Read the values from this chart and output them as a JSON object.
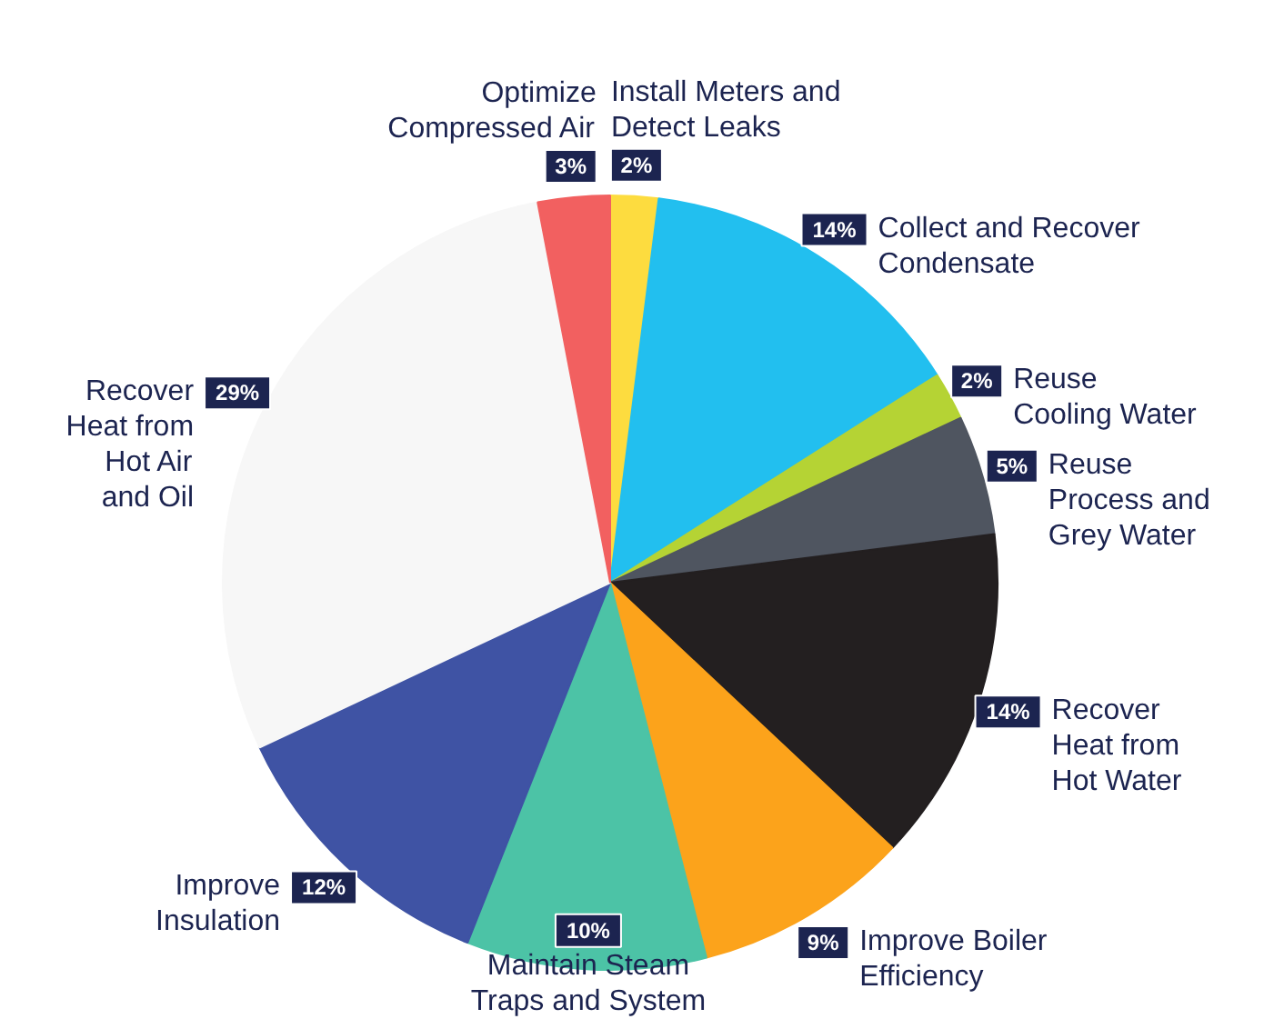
{
  "chart_data": {
    "type": "pie",
    "categories": [
      "Install Meters and\nDetect Leaks",
      "Collect and Recover\nCondensate",
      "Reuse\nCooling Water",
      "Reuse\nProcess and\nGrey Water",
      "Recover\nHeat from\nHot Water",
      "Improve Boiler\nEfficiency",
      "Maintain Steam\nTraps and System",
      "Improve\nInsulation",
      "Recover\nHeat from\nHot Air\nand Oil",
      "Optimize\nCompressed Air"
    ],
    "values": [
      2,
      14,
      2,
      5,
      14,
      9,
      10,
      12,
      29,
      3
    ],
    "value_labels": [
      "2%",
      "14%",
      "2%",
      "5%",
      "14%",
      "9%",
      "10%",
      "12%",
      "29%",
      "3%"
    ],
    "colors": [
      "#fddc3f",
      "#22bfef",
      "#b5d334",
      "#4f5560",
      "#231f20",
      "#fca31b",
      "#4cc3a6",
      "#3f53a4",
      "#f7f7f7",
      "#f26060"
    ],
    "legend": false
  }
}
